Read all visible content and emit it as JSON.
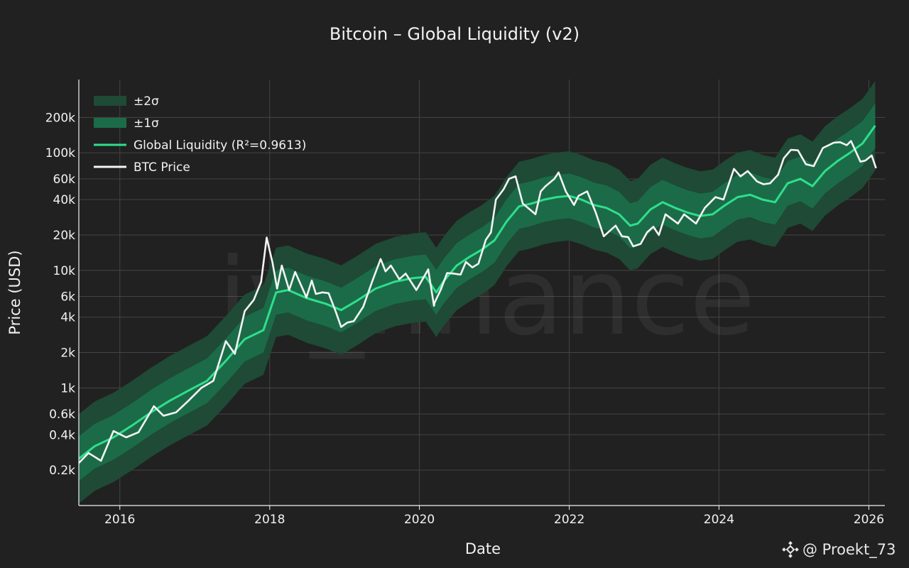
{
  "chart_data": {
    "type": "line",
    "title": "Bitcoin – Global Liquidity (v2)",
    "xlabel": "Date",
    "ylabel": "Price (USD)",
    "y_scale": "log",
    "xlim": [
      "2015-06-15",
      "2026-03-20"
    ],
    "ylim": [
      100,
      420000
    ],
    "grid": true,
    "legend_position": "top-left",
    "x_ticks": [
      {
        "date": "2016-01-01",
        "label": "2016"
      },
      {
        "date": "2018-01-01",
        "label": "2018"
      },
      {
        "date": "2020-01-01",
        "label": "2020"
      },
      {
        "date": "2022-01-01",
        "label": "2022"
      },
      {
        "date": "2024-01-01",
        "label": "2024"
      },
      {
        "date": "2026-01-01",
        "label": "2026"
      }
    ],
    "y_ticks": [
      {
        "value": 200,
        "label": "0.2k"
      },
      {
        "value": 400,
        "label": "0.4k"
      },
      {
        "value": 600,
        "label": "0.6k"
      },
      {
        "value": 1000,
        "label": "1k"
      },
      {
        "value": 2000,
        "label": "2k"
      },
      {
        "value": 4000,
        "label": "4k"
      },
      {
        "value": 6000,
        "label": "6k"
      },
      {
        "value": 10000,
        "label": "10k"
      },
      {
        "value": 20000,
        "label": "20k"
      },
      {
        "value": 40000,
        "label": "40k"
      },
      {
        "value": 60000,
        "label": "60k"
      },
      {
        "value": 100000,
        "label": "100k"
      },
      {
        "value": 200000,
        "label": "200k"
      }
    ],
    "band_sigma": 0.19,
    "series": [
      {
        "name": "±2σ",
        "kind": "band",
        "sigma_multiple": 2,
        "color": "#1e4a36"
      },
      {
        "name": "±1σ",
        "kind": "band",
        "sigma_multiple": 1,
        "color": "#1c6b48"
      },
      {
        "name": "Global Liquidity (R²=0.9613)",
        "kind": "line",
        "color": "#2edf8c",
        "x": [
          "2015-06-15",
          "2015-09-01",
          "2015-12-01",
          "2016-03-01",
          "2016-06-01",
          "2016-09-01",
          "2016-12-01",
          "2017-03-01",
          "2017-06-01",
          "2017-09-01",
          "2017-12-01",
          "2018-02-01",
          "2018-04-01",
          "2018-07-01",
          "2018-10-01",
          "2018-12-15",
          "2019-03-01",
          "2019-06-01",
          "2019-09-01",
          "2019-12-01",
          "2020-02-01",
          "2020-03-23",
          "2020-05-01",
          "2020-07-01",
          "2020-09-01",
          "2020-11-01",
          "2021-01-01",
          "2021-03-01",
          "2021-05-01",
          "2021-07-01",
          "2021-09-01",
          "2021-11-01",
          "2022-01-01",
          "2022-03-01",
          "2022-05-01",
          "2022-07-01",
          "2022-09-01",
          "2022-10-25",
          "2022-12-01",
          "2023-02-01",
          "2023-04-01",
          "2023-06-01",
          "2023-08-01",
          "2023-10-01",
          "2023-12-01",
          "2024-02-01",
          "2024-04-01",
          "2024-06-01",
          "2024-08-01",
          "2024-10-01",
          "2024-12-01",
          "2025-02-01",
          "2025-04-01",
          "2025-06-01",
          "2025-08-01",
          "2025-10-01",
          "2025-12-01",
          "2026-02-01"
        ],
        "y": [
          250,
          320,
          380,
          480,
          620,
          780,
          950,
          1150,
          1700,
          2600,
          3100,
          6500,
          6800,
          5800,
          5200,
          4600,
          5500,
          7000,
          8000,
          8600,
          8800,
          6500,
          8200,
          11000,
          13000,
          15000,
          18000,
          26000,
          35000,
          37000,
          40000,
          42000,
          43000,
          40000,
          36000,
          34000,
          30000,
          24000,
          25000,
          33000,
          38000,
          34000,
          31000,
          29000,
          30000,
          36000,
          42000,
          44000,
          40000,
          38000,
          55000,
          60000,
          52000,
          70000,
          85000,
          100000,
          120000,
          170000
        ]
      },
      {
        "name": "BTC Price",
        "kind": "line",
        "color": "#f4f4f4",
        "x": [
          "2015-06-15",
          "2015-08-01",
          "2015-10-01",
          "2015-12-01",
          "2016-02-01",
          "2016-04-01",
          "2016-06-15",
          "2016-08-01",
          "2016-10-01",
          "2016-12-01",
          "2017-02-01",
          "2017-04-01",
          "2017-06-01",
          "2017-07-15",
          "2017-09-01",
          "2017-10-15",
          "2017-11-20",
          "2017-12-17",
          "2018-01-15",
          "2018-02-06",
          "2018-03-01",
          "2018-04-06",
          "2018-05-05",
          "2018-06-29",
          "2018-07-25",
          "2018-08-14",
          "2018-09-15",
          "2018-10-15",
          "2018-11-20",
          "2018-12-15",
          "2019-01-15",
          "2019-02-15",
          "2019-04-02",
          "2019-05-15",
          "2019-06-26",
          "2019-07-20",
          "2019-08-15",
          "2019-09-25",
          "2019-10-26",
          "2019-12-17",
          "2020-02-13",
          "2020-03-12",
          "2020-03-15",
          "2020-04-15",
          "2020-05-15",
          "2020-06-15",
          "2020-07-20",
          "2020-08-15",
          "2020-09-15",
          "2020-10-15",
          "2020-11-20",
          "2020-12-15",
          "2021-01-08",
          "2021-02-15",
          "2021-03-13",
          "2021-04-14",
          "2021-05-19",
          "2021-06-22",
          "2021-07-20",
          "2021-08-15",
          "2021-09-07",
          "2021-10-20",
          "2021-11-10",
          "2021-12-15",
          "2022-01-24",
          "2022-02-15",
          "2022-03-29",
          "2022-05-10",
          "2022-06-18",
          "2022-07-15",
          "2022-08-15",
          "2022-09-15",
          "2022-10-15",
          "2022-11-09",
          "2022-12-15",
          "2023-01-15",
          "2023-02-15",
          "2023-03-14",
          "2023-04-15",
          "2023-06-15",
          "2023-07-15",
          "2023-09-11",
          "2023-10-24",
          "2023-12-15",
          "2024-01-23",
          "2024-03-14",
          "2024-04-15",
          "2024-05-20",
          "2024-07-05",
          "2024-08-05",
          "2024-09-06",
          "2024-10-15",
          "2024-11-12",
          "2024-12-17",
          "2025-01-20",
          "2025-02-28",
          "2025-04-07",
          "2025-05-22",
          "2025-07-14",
          "2025-08-14",
          "2025-09-15",
          "2025-10-06",
          "2025-11-21",
          "2025-12-15",
          "2026-01-15",
          "2026-02-05"
        ],
        "y": [
          230,
          280,
          240,
          430,
          380,
          420,
          700,
          580,
          620,
          780,
          1000,
          1150,
          2500,
          1950,
          4500,
          5600,
          8000,
          19000,
          11500,
          7000,
          11000,
          6800,
          9700,
          5900,
          8200,
          6300,
          6500,
          6400,
          4400,
          3300,
          3600,
          3700,
          4900,
          8000,
          12500,
          9800,
          11000,
          8400,
          9400,
          6800,
          10200,
          5000,
          5300,
          6900,
          9500,
          9400,
          9200,
          11800,
          10600,
          11400,
          18200,
          21000,
          40000,
          49000,
          60000,
          63000,
          37000,
          33000,
          30000,
          47000,
          52000,
          60000,
          68000,
          47000,
          36000,
          43000,
          47000,
          31000,
          19500,
          21500,
          24000,
          19500,
          19200,
          16000,
          16800,
          21000,
          23500,
          20000,
          30000,
          25000,
          30000,
          25000,
          34000,
          42000,
          40000,
          73000,
          63000,
          70000,
          57000,
          54000,
          55000,
          65000,
          90000,
          106000,
          105000,
          80000,
          77000,
          110000,
          122000,
          123000,
          116000,
          126000,
          84000,
          86000,
          95000,
          74000
        ]
      }
    ]
  },
  "watermark": "iv_finance",
  "credit": {
    "icon": "binance-logo-icon",
    "handle": "@ Proekt_73"
  },
  "colors": {
    "background": "#212121",
    "grid": "#444444",
    "axis": "#f2f2f2"
  }
}
